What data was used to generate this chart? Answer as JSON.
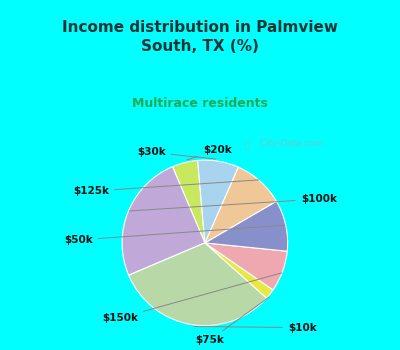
{
  "title": "Income distribution in Palmview\nSouth, TX (%)",
  "subtitle": "Multirace residents",
  "title_color": "#1a3333",
  "subtitle_color": "#22aa55",
  "background_color": "#00ffff",
  "panel_color": "#f0f8f0",
  "labels": [
    "$20k",
    "$100k",
    "$10k",
    "$75k",
    "$150k",
    "$50k",
    "$125k",
    "$30k"
  ],
  "sizes": [
    5,
    25,
    32,
    2,
    8,
    10,
    10,
    8
  ],
  "colors": [
    "#c8e860",
    "#c0a8d8",
    "#b8d8a8",
    "#e8e840",
    "#f0a8b0",
    "#8890cc",
    "#f0c898",
    "#a8d4f0"
  ],
  "startangle": 95,
  "label_fontsize": 7.5,
  "watermark": "   City-Data.com"
}
